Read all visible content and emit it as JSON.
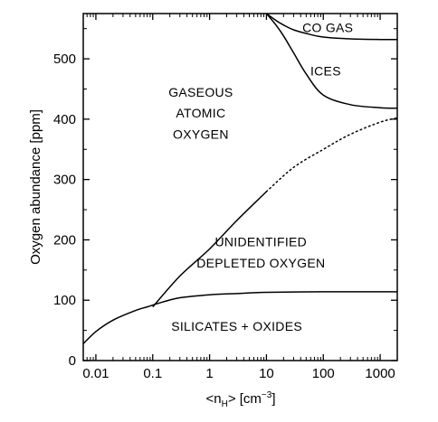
{
  "chart_data": {
    "type": "line",
    "title": "",
    "xlabel": "<nH>  [cm−3]",
    "xlabel_parts": {
      "open": "<n",
      "sub": "H",
      "close": ">  [cm",
      "sup": "−3",
      "end": "]"
    },
    "ylabel": "Oxygen abundance  [ppm]",
    "x_scale": "log",
    "xlim": [
      0.006,
      2000
    ],
    "ylim": [
      0,
      575
    ],
    "xticks": [
      {
        "value": 0.01,
        "label": "0.01"
      },
      {
        "value": 0.1,
        "label": "0.1"
      },
      {
        "value": 1,
        "label": "1"
      },
      {
        "value": 10,
        "label": "10"
      },
      {
        "value": 100,
        "label": "100"
      },
      {
        "value": 1000,
        "label": "1000"
      }
    ],
    "yticks": [
      {
        "value": 0,
        "label": "0"
      },
      {
        "value": 100,
        "label": "100"
      },
      {
        "value": 200,
        "label": "200"
      },
      {
        "value": 300,
        "label": "300"
      },
      {
        "value": 400,
        "label": "400"
      },
      {
        "value": 500,
        "label": "500"
      }
    ],
    "grid": false,
    "series": [
      {
        "style": "solid",
        "x": [
          0.006,
          0.01,
          0.02,
          0.05,
          0.08,
          0.15,
          0.3,
          1,
          3,
          10,
          100,
          1000,
          2000
        ],
        "y": [
          28,
          48,
          67,
          83,
          89,
          97,
          104,
          109,
          111,
          113,
          114,
          114,
          114
        ]
      },
      {
        "style": "solid",
        "x": [
          0.1,
          0.3,
          1,
          3,
          10
        ],
        "y": [
          89,
          140,
          185,
          232,
          280
        ]
      },
      {
        "style": "dotted",
        "x": [
          10,
          30,
          100,
          300,
          1000,
          2000
        ],
        "y": [
          280,
          320,
          350,
          375,
          395,
          402
        ]
      },
      {
        "style": "solid",
        "x": [
          10,
          15,
          20,
          30,
          50,
          100,
          300,
          1000,
          2000
        ],
        "y": [
          575,
          555,
          538,
          510,
          475,
          440,
          424,
          419,
          418
        ]
      },
      {
        "style": "solid",
        "x": [
          10,
          15,
          20,
          30,
          50,
          100,
          300,
          1000,
          2000
        ],
        "y": [
          575,
          563,
          556,
          548,
          542,
          536,
          533,
          532,
          532
        ]
      }
    ],
    "annotations": [
      {
        "id": "gaseous",
        "lines": [
          "GASEOUS",
          "ATOMIC",
          "OXYGEN"
        ],
        "x": 0.7,
        "y": [
          445,
          410,
          375
        ]
      },
      {
        "id": "co-gas",
        "lines": [
          "CO GAS"
        ],
        "x": 120,
        "y": [
          552
        ]
      },
      {
        "id": "ices",
        "lines": [
          "ICES"
        ],
        "x": 110,
        "y": [
          480
        ]
      },
      {
        "id": "unidentified",
        "lines": [
          "UNIDENTIFIED",
          "DEPLETED OXYGEN"
        ],
        "x": 8,
        "y": [
          197,
          162
        ]
      },
      {
        "id": "silicates",
        "lines": [
          "SILICATES + OXIDES"
        ],
        "x": 3,
        "y": [
          57
        ]
      }
    ]
  }
}
